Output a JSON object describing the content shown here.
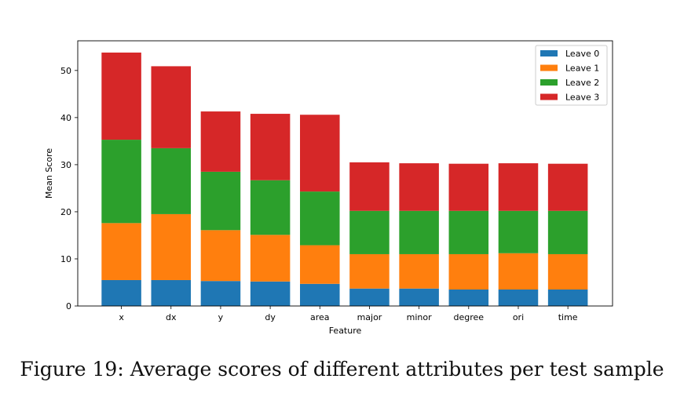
{
  "chart_data": {
    "type": "bar",
    "stacked": true,
    "categories": [
      "x",
      "dx",
      "y",
      "dy",
      "area",
      "major",
      "minor",
      "degree",
      "ori",
      "time"
    ],
    "series": [
      {
        "name": "Leave 0",
        "color": "#1f77b4",
        "values": [
          5.5,
          5.5,
          5.3,
          5.2,
          4.7,
          3.7,
          3.7,
          3.5,
          3.5,
          3.5
        ]
      },
      {
        "name": "Leave 1",
        "color": "#ff7f0e",
        "values": [
          12.1,
          14.0,
          10.8,
          9.9,
          8.2,
          7.3,
          7.3,
          7.5,
          7.7,
          7.5
        ]
      },
      {
        "name": "Leave 2",
        "color": "#2ca02c",
        "values": [
          17.7,
          14.0,
          12.4,
          11.6,
          11.4,
          9.2,
          9.2,
          9.2,
          9.0,
          9.2
        ]
      },
      {
        "name": "Leave 3",
        "color": "#d62728",
        "values": [
          18.5,
          17.4,
          12.8,
          14.1,
          16.3,
          10.3,
          10.1,
          10.0,
          10.1,
          10.0
        ]
      }
    ],
    "xlabel": "Feature",
    "ylabel": "Mean Score",
    "ylim": [
      0,
      56.3
    ],
    "yticks": [
      0,
      10,
      20,
      30,
      40,
      50
    ],
    "grid": false,
    "legend": "top-right"
  },
  "caption": "Figure 19: Average scores of different attributes per test sample"
}
